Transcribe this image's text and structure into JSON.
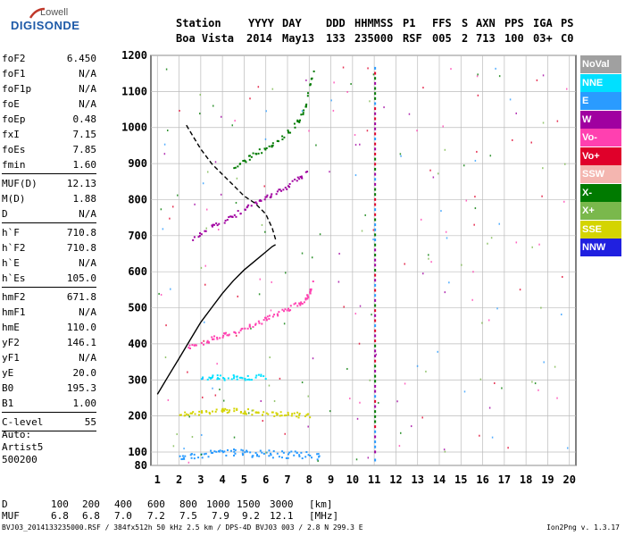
{
  "logo": {
    "small": "Lowell",
    "big": "DIGISONDE"
  },
  "header": {
    "labels": [
      "Station",
      "YYYY",
      "DAY",
      "DDD",
      "HHMMSS",
      "P1",
      "FFS",
      "S",
      "AXN",
      "PPS",
      "IGA",
      "PS"
    ],
    "values": [
      "Boa Vista",
      "2014",
      "May13",
      "133",
      "235000",
      "RSF",
      "005",
      "2",
      "713",
      "100",
      "03+",
      "C0"
    ]
  },
  "params": [
    {
      "name": "foF2",
      "value": "6.450"
    },
    {
      "name": "foF1",
      "value": "N/A"
    },
    {
      "name": "foF1p",
      "value": "N/A"
    },
    {
      "name": "foE",
      "value": "N/A"
    },
    {
      "name": "foEp",
      "value": "0.48"
    },
    {
      "name": "fxI",
      "value": "7.15"
    },
    {
      "name": "foEs",
      "value": "7.85"
    },
    {
      "name": "fmin",
      "value": "1.60"
    },
    {
      "sep": true
    },
    {
      "name": "MUF(D)",
      "value": "12.13"
    },
    {
      "name": "M(D)",
      "value": "1.88"
    },
    {
      "name": "D",
      "value": "N/A"
    },
    {
      "sep": true
    },
    {
      "name": "h`F",
      "value": "710.8"
    },
    {
      "name": "h`F2",
      "value": "710.8"
    },
    {
      "name": "h`E",
      "value": "N/A"
    },
    {
      "name": "h`Es",
      "value": "105.0"
    },
    {
      "sep": true
    },
    {
      "name": "hmF2",
      "value": "671.8"
    },
    {
      "name": "hmF1",
      "value": "N/A"
    },
    {
      "name": "hmE",
      "value": "110.0"
    },
    {
      "name": "yF2",
      "value": "146.1"
    },
    {
      "name": "yF1",
      "value": "N/A"
    },
    {
      "name": "yE",
      "value": "20.0"
    },
    {
      "name": "B0",
      "value": "195.3"
    },
    {
      "name": "B1",
      "value": "1.00"
    },
    {
      "sep": true
    },
    {
      "name": "C-level",
      "value": "55"
    },
    {
      "sep": true
    }
  ],
  "auto": {
    "line1": "Auto:",
    "line2": "Artist5",
    "line3": "500200"
  },
  "legend": [
    {
      "label": "NoVal",
      "color": "#a0a0a0"
    },
    {
      "label": "NNE",
      "color": "#00e0ff"
    },
    {
      "label": "E",
      "color": "#2a9bff"
    },
    {
      "label": "W",
      "color": "#a000a0"
    },
    {
      "label": "Vo-",
      "color": "#ff40b0"
    },
    {
      "label": "Vo+",
      "color": "#e0002a"
    },
    {
      "label": "SSW",
      "color": "#f4b6b0"
    },
    {
      "label": "X-",
      "color": "#007a00"
    },
    {
      "label": "X+",
      "color": "#7ab84c"
    },
    {
      "label": "SSE",
      "color": "#d4d400"
    },
    {
      "label": "NNW",
      "color": "#2020e0"
    }
  ],
  "muf_table": {
    "d_label": "D",
    "muf_label": "MUF",
    "distances": [
      "100",
      "200",
      "400",
      "600",
      "800",
      "1000",
      "1500",
      "3000"
    ],
    "d_unit": "[km]",
    "mufs": [
      "6.8",
      "6.8",
      "7.0",
      "7.2",
      "7.5",
      "7.9",
      "9.2",
      "12.1"
    ],
    "muf_unit": "[MHz]"
  },
  "footer": "BVJ03_2014133235000.RSF / 384fx512h 50 kHz 2.5 km / DPS-4D BVJ03 003 / 2.8 N 299.3 E",
  "version": "Ion2Png v. 1.3.17",
  "chart_data": {
    "type": "scatter",
    "x_ticks": [
      "1",
      "2",
      "3",
      "4",
      "5",
      "6",
      "7",
      "8",
      "9",
      "10",
      "11",
      "12",
      "13",
      "14",
      "15",
      "16",
      "17",
      "18",
      "19",
      "20"
    ],
    "y_ticks": [
      "80",
      "100",
      "200",
      "300",
      "400",
      "500",
      "600",
      "700",
      "800",
      "900",
      "1000",
      "1100",
      "1200"
    ],
    "xlim": [
      1,
      20
    ],
    "ylim": [
      80,
      1200
    ],
    "grid": true,
    "legend_placement": "right",
    "traces": [
      {
        "name": "Vo-",
        "color": "#ff40b0",
        "x": [
          2.4,
          3.0,
          3.5,
          4.0,
          4.5,
          5.0,
          5.5,
          6.0,
          6.5,
          7.0,
          7.5,
          7.8,
          8.0,
          8.2
        ],
        "y": [
          392,
          405,
          415,
          425,
          435,
          445,
          458,
          470,
          485,
          500,
          515,
          525,
          545,
          585
        ]
      },
      {
        "name": "W",
        "color": "#a000a0",
        "x": [
          2.6,
          3.2,
          3.8,
          4.4,
          5.0,
          5.5,
          6.0,
          6.5,
          7.0,
          7.5,
          7.9
        ],
        "y": [
          690,
          715,
          735,
          755,
          775,
          795,
          810,
          825,
          840,
          860,
          880
        ]
      },
      {
        "name": "X-",
        "color": "#007a00",
        "x": [
          4.5,
          5.0,
          5.5,
          6.0,
          6.5,
          7.0,
          7.5,
          7.8,
          8.0,
          8.2
        ],
        "y": [
          890,
          910,
          930,
          945,
          965,
          990,
          1020,
          1060,
          1120,
          1160
        ]
      },
      {
        "name": "SSE",
        "color": "#d4d400",
        "x": [
          2.0,
          2.5,
          3.0,
          3.5,
          4.0,
          4.5,
          5.0,
          5.5,
          6.0,
          6.5,
          7.0,
          7.5,
          8.0
        ],
        "y": [
          205,
          210,
          212,
          215,
          218,
          216,
          215,
          212,
          210,
          208,
          206,
          205,
          204
        ]
      },
      {
        "name": "E",
        "color": "#2a9bff",
        "x": [
          2.0,
          2.5,
          3.0,
          3.5,
          4.0,
          4.5,
          5.0,
          5.5,
          6.0,
          6.5,
          7.0,
          7.5,
          8.0,
          8.5
        ],
        "y": [
          95,
          97,
          98,
          100,
          102,
          103,
          102,
          100,
          101,
          99,
          98,
          97,
          96,
          95
        ]
      },
      {
        "name": "NNE",
        "color": "#00e0ff",
        "x": [
          3.0,
          3.5,
          4.0,
          4.5,
          5.0,
          5.5,
          6.0
        ],
        "y": [
          305,
          310,
          308,
          312,
          306,
          309,
          311
        ]
      }
    ],
    "profile_solid": {
      "x": [
        1.0,
        1.5,
        2.0,
        2.5,
        3.0,
        3.5,
        4.0,
        4.5,
        5.0,
        5.5,
        6.0,
        6.3,
        6.45
      ],
      "y": [
        260,
        310,
        360,
        410,
        460,
        500,
        540,
        575,
        605,
        630,
        655,
        670,
        675
      ]
    },
    "profile_dashed": {
      "x": [
        6.45,
        6.3,
        6.0,
        5.5,
        5.0,
        4.5,
        4.0,
        3.5,
        3.0,
        2.6,
        2.3
      ],
      "y": [
        690,
        720,
        760,
        790,
        810,
        840,
        870,
        900,
        940,
        980,
        1010
      ]
    }
  }
}
